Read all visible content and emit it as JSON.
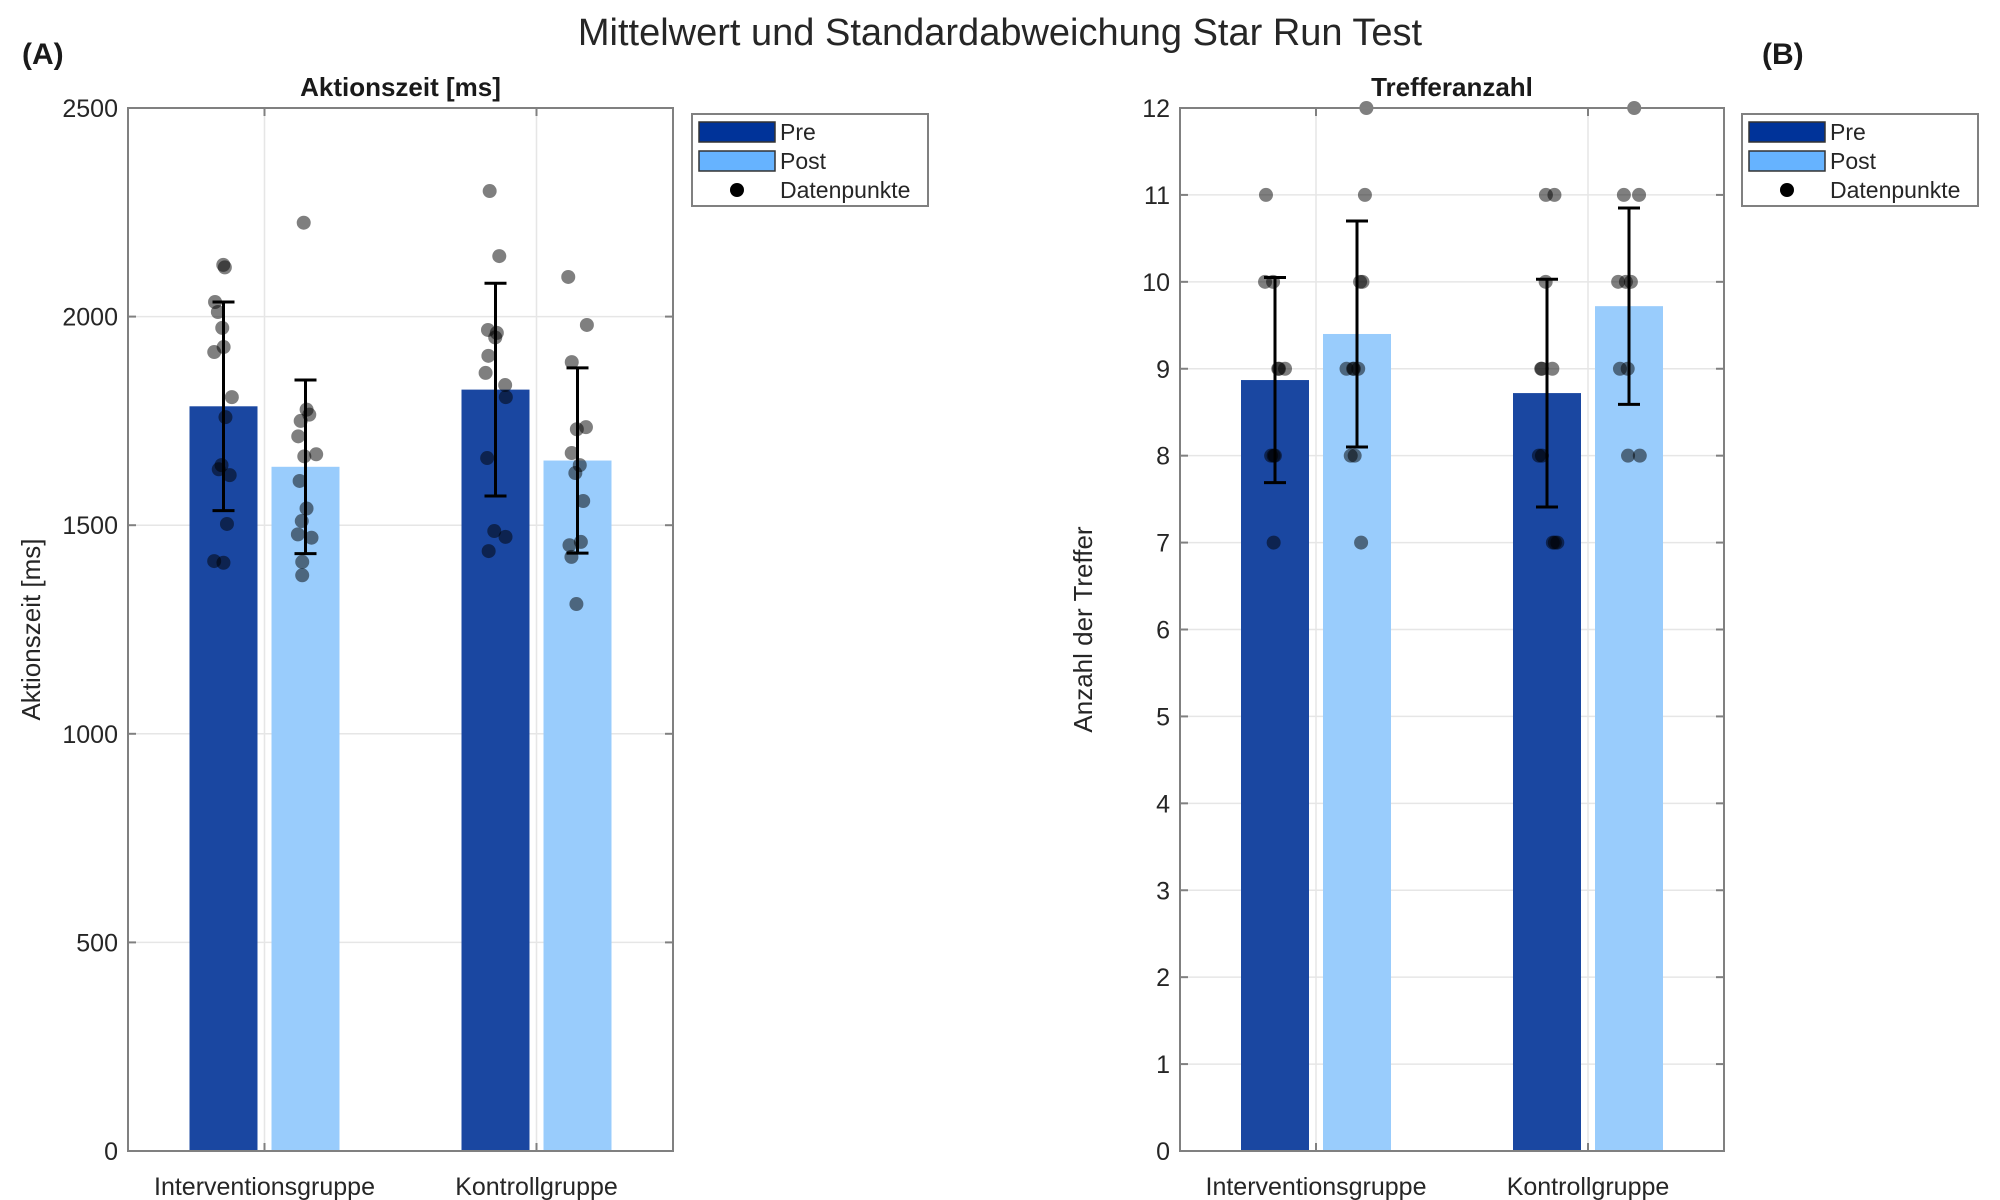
{
  "figure": {
    "title": "Mittelwert und Standardabweichung Star Run Test",
    "panel_labels": [
      "(A)",
      "(B)"
    ]
  },
  "colors": {
    "pre_bar": "#1a47a1",
    "post_bar": "#99ccfc",
    "legend_pre": "#003399",
    "legend_post": "#66b3ff",
    "points": "#000000",
    "error_bar": "#000000"
  },
  "chart_data": [
    {
      "type": "bar",
      "panel": "A",
      "title": "Aktionszeit [ms]",
      "xlabel": "",
      "ylabel": "Aktionszeit [ms]",
      "categories": [
        "Interventionsgruppe",
        "Kontrollgruppe"
      ],
      "ylim": [
        0,
        2500
      ],
      "yticks": [
        0,
        500,
        1000,
        1500,
        2000,
        2500
      ],
      "grid": true,
      "legend": {
        "entries": [
          "Pre",
          "Post",
          "Datenpunkte"
        ],
        "placement": "outside-top-right"
      },
      "series": [
        {
          "name": "Pre",
          "values": [
            1785,
            1825
          ],
          "sd": [
            250,
            255
          ],
          "points": [
            [
              2124,
              2118,
              2035,
              2011,
              1973,
              1927,
              1915,
              1807,
              1759,
              1644,
              1634,
              1620,
              1503,
              1414,
              1410
            ],
            [
              2301,
              2145,
              1968,
              1961,
              1950,
              1906,
              1865,
              1836,
              1807,
              1661,
              1486,
              1472,
              1438
            ]
          ]
        },
        {
          "name": "Post",
          "values": [
            1640,
            1655
          ],
          "sd": [
            208,
            222
          ],
          "points": [
            [
              2225,
              1777,
              1765,
              1750,
              1713,
              1670,
              1665,
              1606,
              1540,
              1510,
              1478,
              1470,
              1412,
              1380
            ],
            [
              2095,
              1980,
              1891,
              1735,
              1730,
              1673,
              1644,
              1625,
              1558,
              1460,
              1452,
              1424,
              1311
            ]
          ]
        }
      ]
    },
    {
      "type": "bar",
      "panel": "B",
      "title": "Trefferanzahl",
      "xlabel": "",
      "ylabel": "Anzahl der Treffer",
      "categories": [
        "Interventionsgruppe",
        "Kontrollgruppe"
      ],
      "ylim": [
        0,
        12
      ],
      "yticks": [
        0,
        1,
        2,
        3,
        4,
        5,
        6,
        7,
        8,
        9,
        10,
        11,
        12
      ],
      "grid": true,
      "legend": {
        "entries": [
          "Pre",
          "Post",
          "Datenpunkte"
        ],
        "placement": "outside-top-right"
      },
      "series": [
        {
          "name": "Pre",
          "values": [
            8.87,
            8.72
          ],
          "sd": [
            1.18,
            1.31
          ],
          "points": [
            [
              11,
              10,
              10,
              9,
              9,
              9,
              8,
              8,
              8,
              7
            ],
            [
              11,
              11,
              10,
              9,
              9,
              9,
              8,
              8,
              7,
              7,
              7
            ]
          ]
        },
        {
          "name": "Post",
          "values": [
            9.4,
            9.72
          ],
          "sd": [
            1.3,
            1.13
          ],
          "points": [
            [
              12,
              11,
              10,
              10,
              9,
              9,
              9,
              9,
              8,
              8,
              7
            ],
            [
              12,
              11,
              11,
              10,
              10,
              10,
              9,
              9,
              8,
              8
            ]
          ]
        }
      ]
    }
  ]
}
